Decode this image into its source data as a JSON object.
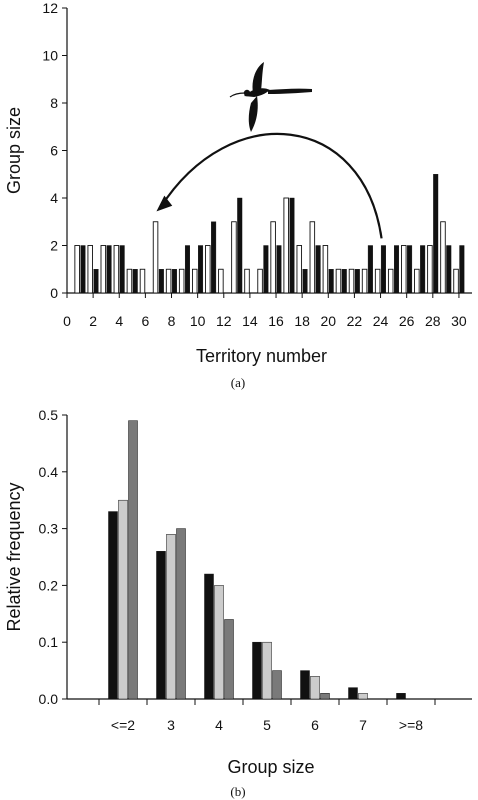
{
  "chart_data": [
    {
      "type": "bar",
      "panel_caption": "(a)",
      "xlabel": "Territory number",
      "ylabel": "Group size",
      "ylim": [
        0,
        12
      ],
      "xlim": [
        0,
        31
      ],
      "yticks": [
        0,
        2,
        4,
        6,
        8,
        10,
        12
      ],
      "xticks": [
        0,
        2,
        4,
        6,
        8,
        10,
        12,
        14,
        16,
        18,
        20,
        22,
        24,
        26,
        28,
        30
      ],
      "grid": false,
      "legend": "none",
      "colors": {
        "white": "#ffffff",
        "black": "#111111"
      },
      "annotation": {
        "type": "curved-arrow",
        "from_territory": 24,
        "to_territory": 7,
        "icon": "flying-bird-icon"
      },
      "series": [
        {
          "x": [
            1,
            2,
            3,
            4,
            5,
            6,
            7,
            8,
            9,
            10,
            11,
            12,
            13,
            14,
            15,
            16,
            17,
            18,
            19,
            20,
            21,
            22,
            23,
            24,
            25,
            26,
            27,
            28,
            29,
            30
          ],
          "values": [
            2,
            2,
            2,
            2,
            1,
            1,
            3,
            1,
            1,
            1,
            2,
            1,
            3,
            1,
            1,
            3,
            4,
            2,
            3,
            2,
            1,
            1,
            1,
            1,
            1,
            2,
            1,
            2,
            3,
            1
          ],
          "color": "#ffffff"
        },
        {
          "x": [
            1,
            2,
            3,
            4,
            5,
            6,
            7,
            8,
            9,
            10,
            11,
            12,
            13,
            14,
            15,
            16,
            17,
            18,
            19,
            20,
            21,
            22,
            23,
            24,
            25,
            26,
            27,
            28,
            29,
            30
          ],
          "values": [
            2,
            1,
            2,
            2,
            1,
            0,
            1,
            1,
            2,
            2,
            3,
            0,
            4,
            0,
            2,
            2,
            4,
            1,
            2,
            1,
            1,
            1,
            2,
            2,
            2,
            2,
            2,
            5,
            2,
            2
          ],
          "color": "#111111"
        }
      ]
    },
    {
      "type": "bar",
      "panel_caption": "(b)",
      "xlabel": "Group size",
      "ylabel": "Relative frequency",
      "ylim": [
        0,
        0.5
      ],
      "yticks": [
        0.0,
        0.1,
        0.2,
        0.3,
        0.4,
        0.5
      ],
      "ytick_labels": [
        "0.0",
        "0.1",
        "0.2",
        "0.3",
        "0.4",
        "0.5"
      ],
      "categories": [
        "<=2",
        "3",
        "4",
        "5",
        "6",
        "7",
        ">=8"
      ],
      "grid": false,
      "legend": "none",
      "series": [
        {
          "values": [
            0.33,
            0.26,
            0.22,
            0.1,
            0.05,
            0.02,
            0.01
          ],
          "color": "#111111"
        },
        {
          "values": [
            0.35,
            0.29,
            0.2,
            0.1,
            0.04,
            0.01,
            0.0
          ],
          "color": "#cccccc"
        },
        {
          "values": [
            0.49,
            0.3,
            0.14,
            0.05,
            0.01,
            0.0,
            0.0
          ],
          "color": "#7a7a7a"
        }
      ]
    }
  ]
}
